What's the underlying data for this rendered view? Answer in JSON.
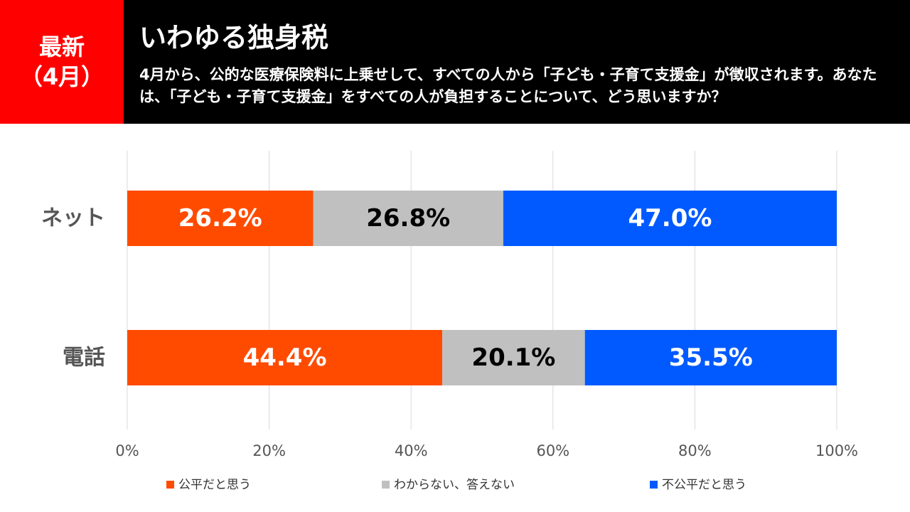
{
  "header": {
    "badge_line1": "最新",
    "badge_line2": "（4月）",
    "title": "いわゆる独身税",
    "question": "4月から、公的な医療保険料に上乗せして、すべての人から「子ども・子育て支援金」が徴収されます。あなたは、「子ども・子育て支援金」をすべての人が負担することについて、どう思いますか？"
  },
  "chart_data": {
    "type": "bar",
    "orientation": "horizontal",
    "stacked": true,
    "categories": [
      "ネット",
      "電話"
    ],
    "series": [
      {
        "name": "公平だと思う",
        "color": "#ff4b00",
        "label_color": "#ffffff",
        "values": [
          26.2,
          44.4
        ],
        "labels": [
          "26.2%",
          "44.4%"
        ]
      },
      {
        "name": "わからない、答えない",
        "color": "#c0c0c0",
        "label_color": "#000000",
        "values": [
          26.8,
          20.1
        ],
        "labels": [
          "26.8%",
          "20.1%"
        ]
      },
      {
        "name": "不公平だと思う",
        "color": "#005aff",
        "label_color": "#ffffff",
        "values": [
          47.0,
          35.5
        ],
        "labels": [
          "47.0%",
          "35.5%"
        ]
      }
    ],
    "xlim": [
      0,
      100
    ],
    "xticks": [
      0,
      20,
      40,
      60,
      80,
      100
    ],
    "xtick_labels": [
      "0%",
      "20%",
      "40%",
      "60%",
      "80%",
      "100%"
    ],
    "grid": true,
    "legend": "bottom"
  }
}
